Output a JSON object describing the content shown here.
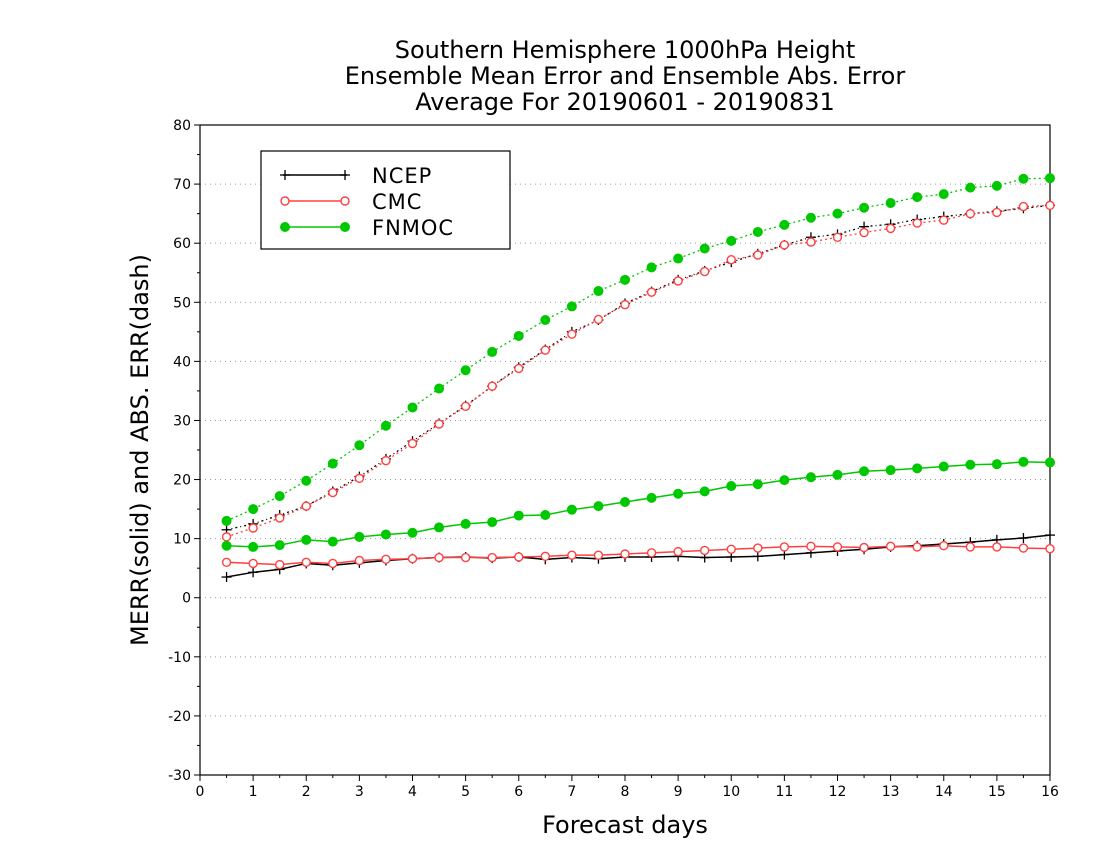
{
  "chart_data": {
    "type": "line",
    "title_lines": [
      "Southern Hemisphere 1000hPa Height",
      "Ensemble Mean Error and Ensemble Abs. Error",
      "Average For 20190601 - 20190831"
    ],
    "xlabel": "Forecast days",
    "ylabel": "MERR(solid) and ABS. ERR(dash)",
    "xlim": [
      0,
      16
    ],
    "ylim": [
      -30,
      80
    ],
    "xticks": [
      "0",
      "1",
      "2",
      "3",
      "4",
      "5",
      "6",
      "7",
      "8",
      "9",
      "10",
      "11",
      "12",
      "13",
      "14",
      "15",
      "16"
    ],
    "yticks": [
      "-30",
      "-20",
      "-10",
      "0",
      "10",
      "20",
      "30",
      "40",
      "50",
      "60",
      "70",
      "80"
    ],
    "grid": "horizontal dotted",
    "legend_position": "top-left",
    "x": [
      0.5,
      1,
      1.5,
      2,
      2.5,
      3,
      3.5,
      4,
      4.5,
      5,
      5.5,
      6,
      6.5,
      7,
      7.5,
      8,
      8.5,
      9,
      9.5,
      10,
      10.5,
      11,
      11.5,
      12,
      12.5,
      13,
      13.5,
      14,
      14.5,
      15,
      15.5,
      16
    ],
    "series": [
      {
        "name": "NCEP",
        "color": "#000000",
        "marker": "plus",
        "merr": [
          3.5,
          4.3,
          4.8,
          5.8,
          5.5,
          5.9,
          6.3,
          6.6,
          6.8,
          6.9,
          6.7,
          6.9,
          6.5,
          6.8,
          6.6,
          6.9,
          6.9,
          7.0,
          6.8,
          6.9,
          7.0,
          7.3,
          7.6,
          7.9,
          8.2,
          8.6,
          8.8,
          9.1,
          9.4,
          9.8,
          10.1,
          10.6
        ],
        "abs_err": [
          11.5,
          12.5,
          14.0,
          15.5,
          18.0,
          20.5,
          23.5,
          26.5,
          29.5,
          32.5,
          35.8,
          39.0,
          42.0,
          45.0,
          47.0,
          49.8,
          51.8,
          53.8,
          55.3,
          56.8,
          58.2,
          59.7,
          61.0,
          61.5,
          62.8,
          63.2,
          64.0,
          64.5,
          65.0,
          65.4,
          65.9,
          66.4
        ]
      },
      {
        "name": "CMC",
        "color": "#ff4040",
        "marker": "open-circle",
        "merr": [
          6.0,
          5.8,
          5.6,
          6.0,
          5.8,
          6.3,
          6.5,
          6.6,
          6.8,
          6.8,
          6.8,
          6.9,
          7.0,
          7.2,
          7.2,
          7.4,
          7.6,
          7.8,
          8.0,
          8.2,
          8.4,
          8.6,
          8.7,
          8.6,
          8.5,
          8.7,
          8.6,
          8.8,
          8.6,
          8.6,
          8.4,
          8.3
        ],
        "abs_err": [
          10.3,
          11.8,
          13.5,
          15.5,
          17.8,
          20.2,
          23.2,
          26.1,
          29.4,
          32.4,
          35.8,
          38.8,
          41.9,
          44.6,
          47.1,
          49.6,
          51.7,
          53.6,
          55.2,
          57.2,
          58.0,
          59.7,
          60.2,
          61.0,
          61.8,
          62.5,
          63.4,
          63.9,
          65.0,
          65.2,
          66.2,
          66.4
        ]
      },
      {
        "name": "FNMOC",
        "color": "#00c800",
        "marker": "filled-circle",
        "merr": [
          8.8,
          8.6,
          8.9,
          9.8,
          9.5,
          10.3,
          10.7,
          11.0,
          11.9,
          12.5,
          12.8,
          13.9,
          14.0,
          14.9,
          15.5,
          16.2,
          16.9,
          17.6,
          18.0,
          18.9,
          19.2,
          19.9,
          20.4,
          20.8,
          21.4,
          21.6,
          21.9,
          22.2,
          22.5,
          22.6,
          23.0,
          22.9
        ],
        "abs_err": [
          13.0,
          15.0,
          17.2,
          19.8,
          22.7,
          25.8,
          29.1,
          32.2,
          35.4,
          38.5,
          41.6,
          44.3,
          47.0,
          49.3,
          51.9,
          53.8,
          55.9,
          57.4,
          59.1,
          60.4,
          61.9,
          63.1,
          64.3,
          65.0,
          66.0,
          66.8,
          67.8,
          68.3,
          69.4,
          69.7,
          70.9,
          71.0
        ]
      }
    ]
  }
}
